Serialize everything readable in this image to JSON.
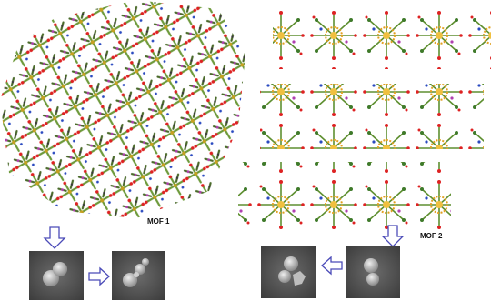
{
  "panels": [
    {
      "label": "MOF 1"
    },
    {
      "label": "MOF 2"
    }
  ]
}
